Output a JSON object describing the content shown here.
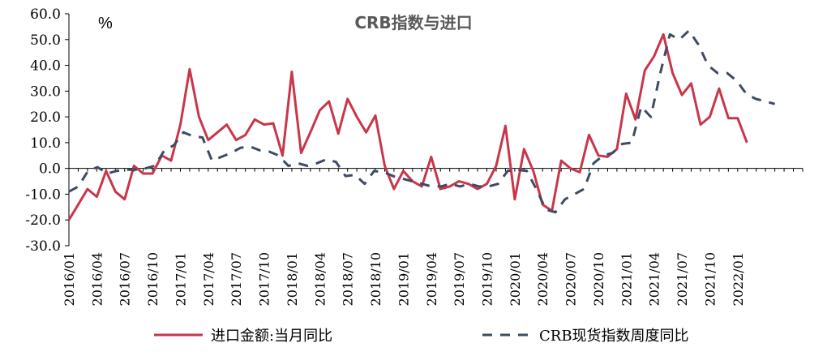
{
  "chart_data": {
    "type": "line",
    "title": "CRB指数与进口",
    "unit_label": "%",
    "ylim": [
      -30,
      60
    ],
    "yticks": [
      "60.0",
      "50.0",
      "40.0",
      "30.0",
      "20.0",
      "10.0",
      "0.0",
      "-10.0",
      "-20.0",
      "-30.0"
    ],
    "xtick_labels": [
      "2016/01",
      "2016/04",
      "2016/07",
      "2016/10",
      "2017/01",
      "2017/04",
      "2017/07",
      "2017/10",
      "2018/01",
      "2018/04",
      "2018/07",
      "2018/10",
      "2019/01",
      "2019/04",
      "2019/07",
      "2019/10",
      "2020/01",
      "2020/04",
      "2020/07",
      "2020/10",
      "2021/01",
      "2021/04",
      "2021/07",
      "2021/10",
      "2022/01"
    ],
    "colors": {
      "import": "#c8364a",
      "crb": "#3d4b63"
    },
    "series": [
      {
        "name": "进口金额:当月同比",
        "style": "solid",
        "x_start": "2016/01",
        "values": [
          -20,
          -14,
          -8,
          -11,
          -1,
          -9,
          -12,
          1,
          -2,
          -2,
          5,
          3,
          17,
          38.5,
          20,
          11,
          14,
          17,
          11,
          13,
          19,
          17,
          17.5,
          5,
          37.5,
          6,
          14,
          22.5,
          26,
          13.5,
          27,
          20,
          14,
          20.5,
          1,
          -8,
          -1,
          -5,
          -7,
          4.5,
          -8,
          -7,
          -5,
          -6,
          -8,
          -6,
          1,
          16.5,
          -12,
          7.5,
          -1,
          -14,
          -16.5,
          3,
          0,
          -1.5,
          13,
          5,
          4.5,
          7.5,
          29,
          19,
          38,
          43.5,
          52,
          37,
          28.5,
          33,
          17,
          20,
          31,
          19.5,
          19.5,
          10
        ]
      },
      {
        "name": "CRB现货指数周度同比",
        "style": "dashed",
        "x_start": "2016/01",
        "x_end": "2022/05",
        "values": [
          -9,
          -7,
          -1,
          0.5,
          -2,
          -1,
          -0.5,
          -0.5,
          0,
          1,
          7,
          9,
          14,
          12.5,
          12,
          3,
          4.5,
          6,
          8,
          8.5,
          7,
          6.5,
          5,
          1,
          2,
          1,
          2,
          3.5,
          2.5,
          -3,
          -2.5,
          -6,
          -1,
          -1.5,
          -3,
          -4,
          -5,
          -6,
          -7,
          -7,
          -6,
          -7,
          -6,
          -7,
          -7,
          -6,
          -1,
          -0.5,
          -1,
          -8,
          -16,
          -17,
          -12,
          -10,
          -8,
          2,
          5,
          6,
          9.5,
          10,
          24,
          20,
          37,
          52,
          50,
          53.5,
          48,
          40,
          37,
          37,
          34,
          29,
          27,
          26,
          25
        ]
      }
    ]
  },
  "legend": {
    "item1": "进口金额:当月同比",
    "item2": "CRB现货指数周度同比"
  }
}
